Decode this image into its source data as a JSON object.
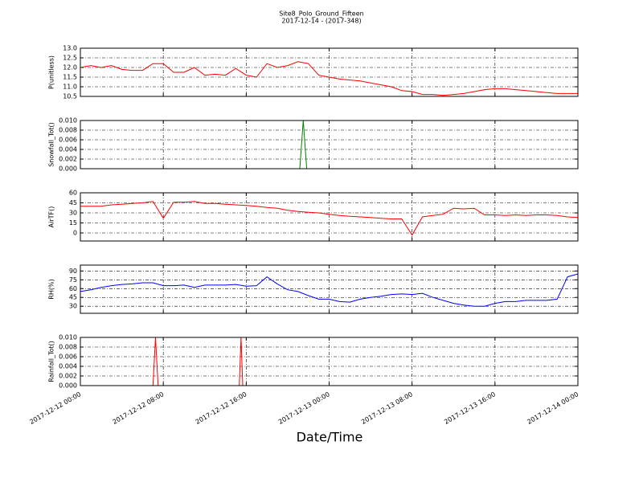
{
  "title": "Site8_Polo_Ground_Fifteen",
  "subtitle": "2017-12-14 - (2017-348)",
  "xlabel": "Date/Time",
  "xlim": [
    "2017-12-12 00:00",
    "2017-12-14 00:00"
  ],
  "xticks": [
    "2017-12-12 00:00",
    "2017-12-12 08:00",
    "2017-12-12 16:00",
    "2017-12-13 00:00",
    "2017-12-13 08:00",
    "2017-12-13 16:00",
    "2017-12-14 00:00"
  ],
  "grid": true,
  "chart_data": [
    {
      "type": "line",
      "ylabel": "P(unitless)",
      "color": "#ff0000",
      "ylim": [
        10.5,
        13.0
      ],
      "yticks": [
        10.5,
        {
          "value": 11.0,
          "label": "11.0"
        },
        11.5,
        {
          "value": 12.0,
          "label": "12.0"
        },
        12.5,
        {
          "value": 13.0,
          "label": "13.0"
        }
      ],
      "x": [
        "2017-12-12 00:00",
        "2017-12-12 01:00",
        "2017-12-12 02:00",
        "2017-12-12 03:00",
        "2017-12-12 04:00",
        "2017-12-12 05:00",
        "2017-12-12 06:00",
        "2017-12-12 07:00",
        "2017-12-12 08:00",
        "2017-12-12 09:00",
        "2017-12-12 10:00",
        "2017-12-12 11:00",
        "2017-12-12 12:00",
        "2017-12-12 13:00",
        "2017-12-12 14:00",
        "2017-12-12 15:00",
        "2017-12-12 16:00",
        "2017-12-12 17:00",
        "2017-12-12 18:00",
        "2017-12-12 19:00",
        "2017-12-12 20:00",
        "2017-12-12 21:00",
        "2017-12-12 22:00",
        "2017-12-12 23:00",
        "2017-12-13 00:00",
        "2017-12-13 01:00",
        "2017-12-13 02:00",
        "2017-12-13 03:00",
        "2017-12-13 04:00",
        "2017-12-13 05:00",
        "2017-12-13 06:00",
        "2017-12-13 07:00",
        "2017-12-13 08:00",
        "2017-12-13 09:00",
        "2017-12-13 10:00",
        "2017-12-13 11:00",
        "2017-12-13 12:00",
        "2017-12-13 13:00",
        "2017-12-13 14:00",
        "2017-12-13 15:00",
        "2017-12-13 16:00",
        "2017-12-13 17:00",
        "2017-12-13 18:00",
        "2017-12-13 19:00",
        "2017-12-13 20:00",
        "2017-12-13 21:00",
        "2017-12-13 22:00",
        "2017-12-13 23:00",
        "2017-12-14 00:00"
      ],
      "values": [
        12.0,
        12.1,
        12.0,
        12.1,
        11.9,
        11.85,
        11.85,
        12.2,
        12.2,
        11.75,
        11.75,
        12.0,
        11.6,
        11.65,
        11.6,
        11.95,
        11.6,
        11.5,
        12.2,
        12.0,
        12.1,
        12.3,
        12.2,
        11.6,
        11.5,
        11.4,
        11.35,
        11.3,
        11.2,
        11.1,
        11.0,
        10.8,
        10.75,
        10.6,
        10.6,
        10.55,
        10.6,
        10.65,
        10.75,
        10.85,
        10.9,
        10.9,
        10.85,
        10.8,
        10.75,
        10.7,
        10.65,
        10.65,
        10.65
      ]
    },
    {
      "type": "line",
      "ylabel": "Snowfall_Tot()",
      "color": "#008000",
      "ylim": [
        0,
        0.01
      ],
      "yticks": [
        {
          "value": 0,
          "label": "0.000"
        },
        {
          "value": 0.002,
          "label": "0.002"
        },
        {
          "value": 0.004,
          "label": "0.004"
        },
        {
          "value": 0.006,
          "label": "0.006"
        },
        {
          "value": 0.008,
          "label": "0.008"
        },
        {
          "value": 0.01,
          "label": "0.010"
        }
      ],
      "x": [
        "2017-12-12 00:00",
        "2017-12-12 21:10",
        "2017-12-12 21:30",
        "2017-12-12 21:50",
        "2017-12-14 00:00"
      ],
      "values": [
        0,
        0,
        0.01,
        0,
        0
      ]
    },
    {
      "type": "line",
      "ylabel": "AirTF()",
      "color": "#ff0000",
      "ylim": [
        -12,
        60
      ],
      "yticks": [
        0,
        15,
        30,
        45,
        60
      ],
      "x": [
        "2017-12-12 00:00",
        "2017-12-12 01:00",
        "2017-12-12 02:00",
        "2017-12-12 03:00",
        "2017-12-12 04:00",
        "2017-12-12 05:00",
        "2017-12-12 06:00",
        "2017-12-12 07:00",
        "2017-12-12 08:00",
        "2017-12-12 09:00",
        "2017-12-12 10:00",
        "2017-12-12 11:00",
        "2017-12-12 12:00",
        "2017-12-12 13:00",
        "2017-12-12 14:00",
        "2017-12-12 15:00",
        "2017-12-12 16:00",
        "2017-12-12 17:00",
        "2017-12-12 18:00",
        "2017-12-12 19:00",
        "2017-12-12 20:00",
        "2017-12-12 21:00",
        "2017-12-12 22:00",
        "2017-12-12 23:00",
        "2017-12-13 00:00",
        "2017-12-13 01:00",
        "2017-12-13 02:00",
        "2017-12-13 03:00",
        "2017-12-13 04:00",
        "2017-12-13 05:00",
        "2017-12-13 06:00",
        "2017-12-13 07:00",
        "2017-12-13 08:00",
        "2017-12-13 09:00",
        "2017-12-13 10:00",
        "2017-12-13 11:00",
        "2017-12-13 12:00",
        "2017-12-13 13:00",
        "2017-12-13 14:00",
        "2017-12-13 15:00",
        "2017-12-13 16:00",
        "2017-12-13 17:00",
        "2017-12-13 18:00",
        "2017-12-13 19:00",
        "2017-12-13 20:00",
        "2017-12-13 21:00",
        "2017-12-13 22:00",
        "2017-12-13 23:00",
        "2017-12-14 00:00"
      ],
      "values": [
        40,
        40,
        40,
        42,
        43,
        44,
        45,
        47,
        22,
        46,
        46,
        47,
        44,
        44,
        43,
        42,
        41,
        40,
        38,
        37,
        34,
        32,
        31,
        30,
        28,
        26,
        25,
        24,
        23,
        22,
        21,
        21,
        -3,
        24,
        26,
        28,
        37,
        36,
        37,
        27,
        27,
        26,
        27,
        26,
        27,
        27,
        26,
        24,
        23
      ]
    },
    {
      "type": "line",
      "ylabel": "RH(%)",
      "color": "#0000ff",
      "ylim": [
        18,
        100
      ],
      "yticks": [
        30,
        45,
        60,
        75,
        90
      ],
      "x": [
        "2017-12-12 00:00",
        "2017-12-12 01:00",
        "2017-12-12 02:00",
        "2017-12-12 03:00",
        "2017-12-12 04:00",
        "2017-12-12 05:00",
        "2017-12-12 06:00",
        "2017-12-12 07:00",
        "2017-12-12 08:00",
        "2017-12-12 09:00",
        "2017-12-12 10:00",
        "2017-12-12 11:00",
        "2017-12-12 12:00",
        "2017-12-12 13:00",
        "2017-12-12 14:00",
        "2017-12-12 15:00",
        "2017-12-12 16:00",
        "2017-12-12 17:00",
        "2017-12-12 18:00",
        "2017-12-12 19:00",
        "2017-12-12 20:00",
        "2017-12-12 21:00",
        "2017-12-12 22:00",
        "2017-12-12 23:00",
        "2017-12-13 00:00",
        "2017-12-13 01:00",
        "2017-12-13 02:00",
        "2017-12-13 03:00",
        "2017-12-13 04:00",
        "2017-12-13 05:00",
        "2017-12-13 06:00",
        "2017-12-13 07:00",
        "2017-12-13 08:00",
        "2017-12-13 09:00",
        "2017-12-13 10:00",
        "2017-12-13 11:00",
        "2017-12-13 12:00",
        "2017-12-13 13:00",
        "2017-12-13 14:00",
        "2017-12-13 15:00",
        "2017-12-13 16:00",
        "2017-12-13 17:00",
        "2017-12-13 18:00",
        "2017-12-13 19:00",
        "2017-12-13 20:00",
        "2017-12-13 21:00",
        "2017-12-13 22:00",
        "2017-12-13 23:00",
        "2017-12-14 00:00"
      ],
      "values": [
        55,
        58,
        62,
        65,
        67,
        68,
        70,
        70,
        65,
        65,
        66,
        62,
        66,
        66,
        66,
        67,
        64,
        65,
        80,
        68,
        58,
        55,
        48,
        42,
        42,
        38,
        37,
        42,
        45,
        47,
        50,
        51,
        50,
        52,
        45,
        40,
        35,
        32,
        30,
        30,
        35,
        38,
        38,
        40,
        40,
        40,
        42,
        80,
        85
      ]
    },
    {
      "type": "line",
      "ylabel": "Rainfall_Tot()",
      "color": "#ff0000",
      "ylim": [
        0,
        0.01
      ],
      "yticks": [
        {
          "value": 0,
          "label": "0.000"
        },
        {
          "value": 0.002,
          "label": "0.002"
        },
        {
          "value": 0.004,
          "label": "0.004"
        },
        {
          "value": 0.006,
          "label": "0.006"
        },
        {
          "value": 0.008,
          "label": "0.008"
        },
        {
          "value": 0.01,
          "label": "0.010"
        }
      ],
      "x": [
        "2017-12-12 00:00",
        "2017-12-12 07:00",
        "2017-12-12 07:15",
        "2017-12-12 07:30",
        "2017-12-12 15:20",
        "2017-12-12 15:30",
        "2017-12-12 15:40",
        "2017-12-14 00:00"
      ],
      "values": [
        0,
        0,
        0.01,
        0,
        0,
        0.01,
        0,
        0
      ]
    }
  ]
}
